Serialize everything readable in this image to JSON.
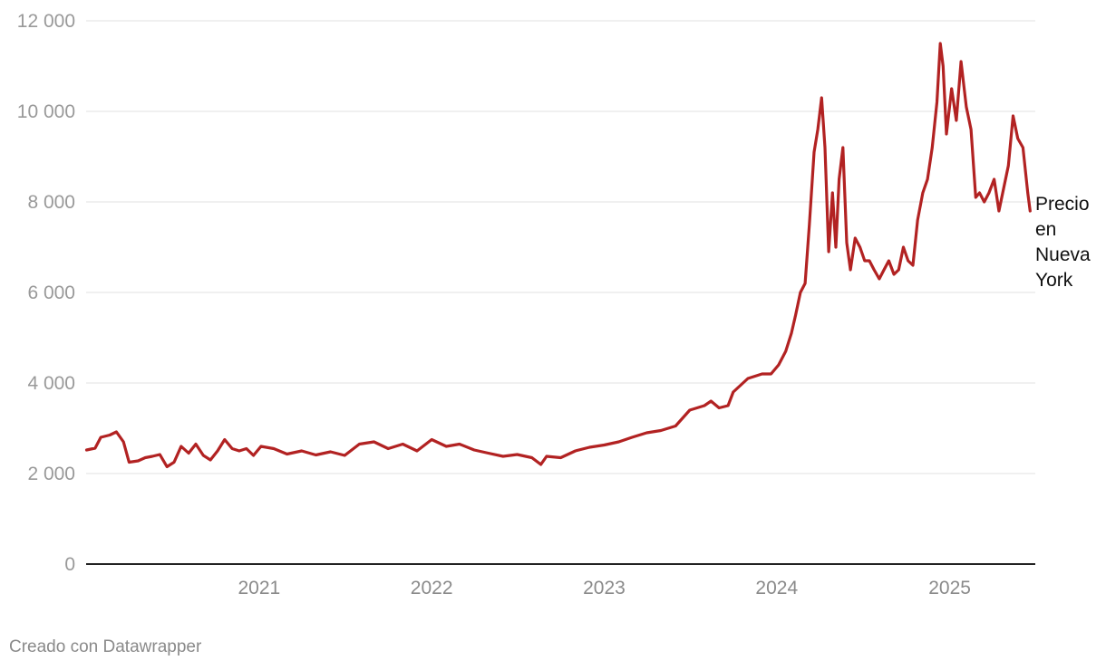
{
  "chart_data": {
    "type": "line",
    "title": "",
    "xlabel": "",
    "ylabel": "",
    "ylim": [
      0,
      12000
    ],
    "xlim": [
      "2020-01-01",
      "2025-07-01"
    ],
    "yticks": [
      0,
      2000,
      4000,
      6000,
      8000,
      10000,
      12000
    ],
    "ytick_labels": [
      "0",
      "2 000",
      "4 000",
      "6 000",
      "8 000",
      "10 000",
      "12 000"
    ],
    "xtick_labels": [
      "2021",
      "2022",
      "2023",
      "2024",
      "2025"
    ],
    "xtick_dates": [
      "2021-01-01",
      "2022-01-01",
      "2023-01-01",
      "2024-01-01",
      "2025-01-01"
    ],
    "grid": true,
    "color": "#b22222",
    "series": [
      {
        "name": "Precio en Nueva York",
        "x": [
          "2020-01-02",
          "2020-01-20",
          "2020-02-01",
          "2020-02-20",
          "2020-03-05",
          "2020-03-20",
          "2020-04-01",
          "2020-04-20",
          "2020-05-05",
          "2020-05-20",
          "2020-06-05",
          "2020-06-20",
          "2020-07-05",
          "2020-07-20",
          "2020-08-05",
          "2020-08-20",
          "2020-09-05",
          "2020-09-20",
          "2020-10-05",
          "2020-10-20",
          "2020-11-05",
          "2020-11-20",
          "2020-12-05",
          "2020-12-20",
          "2021-01-05",
          "2021-02-01",
          "2021-03-01",
          "2021-04-01",
          "2021-05-01",
          "2021-06-01",
          "2021-07-01",
          "2021-08-01",
          "2021-09-01",
          "2021-10-01",
          "2021-11-01",
          "2021-12-01",
          "2022-01-01",
          "2022-02-01",
          "2022-03-01",
          "2022-04-01",
          "2022-05-01",
          "2022-06-01",
          "2022-07-01",
          "2022-08-01",
          "2022-08-20",
          "2022-09-01",
          "2022-10-01",
          "2022-11-01",
          "2022-12-01",
          "2023-01-01",
          "2023-02-01",
          "2023-03-01",
          "2023-04-01",
          "2023-05-01",
          "2023-06-01",
          "2023-07-01",
          "2023-08-01",
          "2023-08-15",
          "2023-09-01",
          "2023-09-20",
          "2023-10-01",
          "2023-11-01",
          "2023-12-01",
          "2023-12-20",
          "2024-01-05",
          "2024-01-20",
          "2024-02-01",
          "2024-02-10",
          "2024-02-20",
          "2024-03-01",
          "2024-03-10",
          "2024-03-20",
          "2024-03-28",
          "2024-04-05",
          "2024-04-12",
          "2024-04-20",
          "2024-04-28",
          "2024-05-05",
          "2024-05-12",
          "2024-05-20",
          "2024-05-28",
          "2024-06-05",
          "2024-06-15",
          "2024-06-25",
          "2024-07-05",
          "2024-07-15",
          "2024-07-25",
          "2024-08-05",
          "2024-08-15",
          "2024-08-25",
          "2024-09-05",
          "2024-09-15",
          "2024-09-25",
          "2024-10-05",
          "2024-10-15",
          "2024-10-25",
          "2024-11-05",
          "2024-11-15",
          "2024-11-25",
          "2024-12-05",
          "2024-12-12",
          "2024-12-18",
          "2024-12-25",
          "2025-01-05",
          "2025-01-15",
          "2025-01-25",
          "2025-02-05",
          "2025-02-15",
          "2025-02-25",
          "2025-03-05",
          "2025-03-15",
          "2025-03-25",
          "2025-04-05",
          "2025-04-15",
          "2025-04-25",
          "2025-05-05",
          "2025-05-15",
          "2025-05-25",
          "2025-06-05",
          "2025-06-15",
          "2025-06-20"
        ],
        "values": [
          2520,
          2560,
          2800,
          2850,
          2920,
          2700,
          2250,
          2280,
          2350,
          2380,
          2420,
          2150,
          2250,
          2600,
          2450,
          2650,
          2400,
          2300,
          2500,
          2750,
          2550,
          2500,
          2550,
          2400,
          2600,
          2550,
          2430,
          2500,
          2410,
          2480,
          2400,
          2650,
          2700,
          2550,
          2650,
          2500,
          2750,
          2600,
          2650,
          2520,
          2450,
          2380,
          2420,
          2350,
          2200,
          2380,
          2350,
          2500,
          2580,
          2630,
          2700,
          2800,
          2900,
          2950,
          3050,
          3400,
          3500,
          3600,
          3450,
          3500,
          3800,
          4100,
          4200,
          4200,
          4400,
          4700,
          5100,
          5500,
          6000,
          6200,
          7500,
          9100,
          9600,
          10300,
          9200,
          6900,
          8200,
          7000,
          8500,
          9200,
          7100,
          6500,
          7200,
          7000,
          6700,
          6700,
          6500,
          6300,
          6500,
          6700,
          6400,
          6500,
          7000,
          6700,
          6600,
          7600,
          8200,
          8500,
          9200,
          10200,
          11500,
          11000,
          9500,
          10500,
          9800,
          11100,
          10100,
          9600,
          8100,
          8200,
          8000,
          8200,
          8500,
          7800,
          8300,
          8800,
          9900,
          9400,
          9200,
          8200,
          7800
        ]
      }
    ]
  },
  "series_label": "Precio en Nueva York",
  "footer": {
    "credit": "Creado con Datawrapper"
  }
}
